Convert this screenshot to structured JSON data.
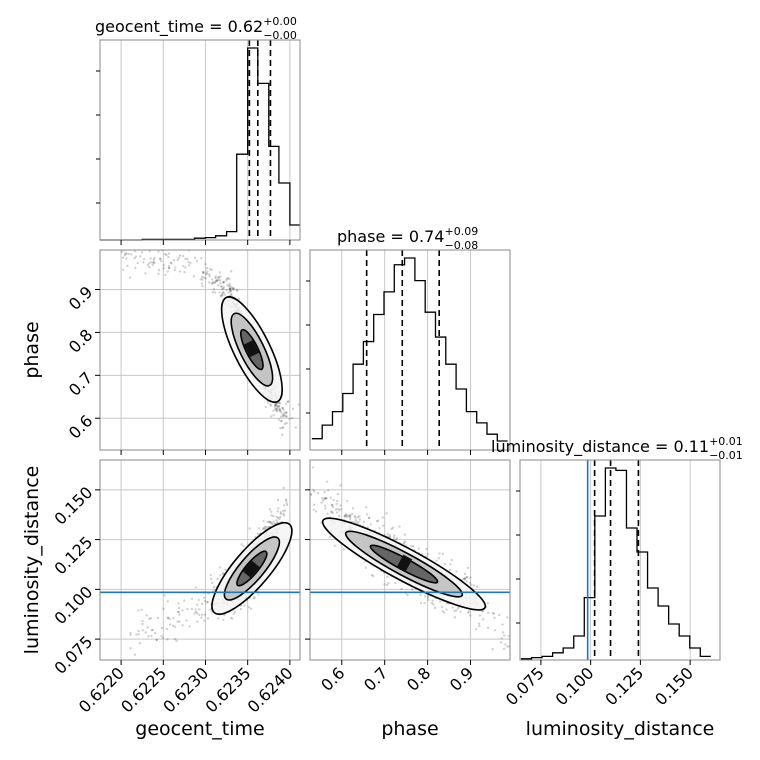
{
  "chart_data": {
    "type": "corner",
    "parameters": [
      "geocent_time",
      "phase",
      "luminosity_distance"
    ],
    "axis_labels": {
      "x": [
        "geocent_time",
        "phase",
        "luminosity_distance"
      ],
      "y": [
        "phase",
        "luminosity_distance"
      ]
    },
    "titles": [
      {
        "param": "geocent_time",
        "text": "geocent_time = 0.62",
        "sup": "+0.00",
        "sub": "−0.00"
      },
      {
        "param": "phase",
        "text": "phase = 0.74",
        "sup": "+0.09",
        "sub": "−0.08"
      },
      {
        "param": "luminosity_distance",
        "text": "luminosity_distance = 0.11",
        "sup": "+0.01",
        "sub": "−0.01"
      }
    ],
    "ranges": {
      "geocent_time": [
        0.62175,
        0.62412
      ],
      "phase": [
        0.526,
        0.992
      ],
      "luminosity_distance": [
        0.0645,
        0.165
      ]
    },
    "ticks": {
      "geocent_time": {
        "values": [
          0.622,
          0.6225,
          0.623,
          0.6235,
          0.624
        ],
        "labels": [
          "0.6220",
          "0.6225",
          "0.6230",
          "0.6235",
          "0.6240"
        ]
      },
      "phase": {
        "values": [
          0.6,
          0.7,
          0.8,
          0.9
        ],
        "labels": [
          "0.6",
          "0.7",
          "0.8",
          "0.9"
        ]
      },
      "luminosity_distance": {
        "values": [
          0.075,
          0.1,
          0.125,
          0.15
        ],
        "labels": [
          "0.075",
          "0.100",
          "0.125",
          "0.150"
        ]
      }
    },
    "injection": {
      "luminosity_distance": 0.0985,
      "color": "#1f77b4"
    },
    "quantiles": {
      "geocent_time": [
        0.62352,
        0.62362,
        0.62377
      ],
      "phase": [
        0.658,
        0.741,
        0.827
      ],
      "luminosity_distance": [
        0.102,
        0.11,
        0.124
      ]
    },
    "histograms": {
      "geocent_time": {
        "edges": [
          0.62175,
          0.62187,
          0.622,
          0.62212,
          0.62225,
          0.62237,
          0.6225,
          0.62262,
          0.62275,
          0.62287,
          0.623,
          0.62312,
          0.62325,
          0.62337,
          0.6235,
          0.62362,
          0.62375,
          0.62387,
          0.624,
          0.62412
        ],
        "counts": [
          0,
          0,
          0,
          0,
          1,
          1,
          1,
          1,
          1,
          3,
          4,
          7,
          14,
          143,
          320,
          261,
          156,
          95,
          25
        ]
      },
      "phase": {
        "edges": [
          0.5304,
          0.5544,
          0.5784,
          0.6024,
          0.6264,
          0.6504,
          0.6744,
          0.6984,
          0.7224,
          0.7464,
          0.7704,
          0.7944,
          0.8184,
          0.8424,
          0.8664,
          0.8904,
          0.9144,
          0.9384,
          0.9624,
          0.9864
        ],
        "counts": [
          5,
          11,
          17,
          25,
          38,
          48,
          60,
          70,
          82,
          85,
          75,
          61,
          50,
          38,
          27,
          17,
          12,
          7,
          4
        ]
      },
      "luminosity_distance": {
        "edges": [
          0.065,
          0.0703,
          0.0756,
          0.0809,
          0.0862,
          0.0915,
          0.0968,
          0.1021,
          0.1074,
          0.1127,
          0.118,
          0.1233,
          0.1286,
          0.1339,
          0.1392,
          0.1445,
          0.1498,
          0.1551,
          0.1604
        ],
        "counts": [
          1,
          2,
          3,
          6,
          10,
          20,
          52,
          120,
          160,
          158,
          110,
          90,
          60,
          45,
          30,
          20,
          10,
          3
        ]
      }
    },
    "samples_2d": {
      "phase_vs_geocent_time": {
        "ridge_x": [
          0.622,
          0.6225,
          0.623,
          0.6233,
          0.6235,
          0.6237,
          0.6239
        ],
        "ridge_y": [
          0.985,
          0.97,
          0.945,
          0.88,
          0.78,
          0.7,
          0.61
        ],
        "scatter": [
          0.95,
          0.02
        ]
      },
      "luminosity_distance_vs_geocent_time": {
        "ridge_x": [
          0.6221,
          0.6225,
          0.623,
          0.6233,
          0.6235,
          0.6237,
          0.6239
        ],
        "ridge_y": [
          0.075,
          0.083,
          0.092,
          0.099,
          0.108,
          0.118,
          0.14
        ],
        "scatter": [
          0.95,
          0.006
        ]
      },
      "luminosity_distance_vs_phase": {
        "ridge_x": [
          0.53,
          0.6,
          0.68,
          0.75,
          0.82,
          0.9,
          0.98
        ],
        "ridge_y": [
          0.148,
          0.135,
          0.122,
          0.112,
          0.104,
          0.095,
          0.076
        ],
        "scatter": [
          0.02,
          0.006
        ]
      }
    },
    "grid": true
  }
}
